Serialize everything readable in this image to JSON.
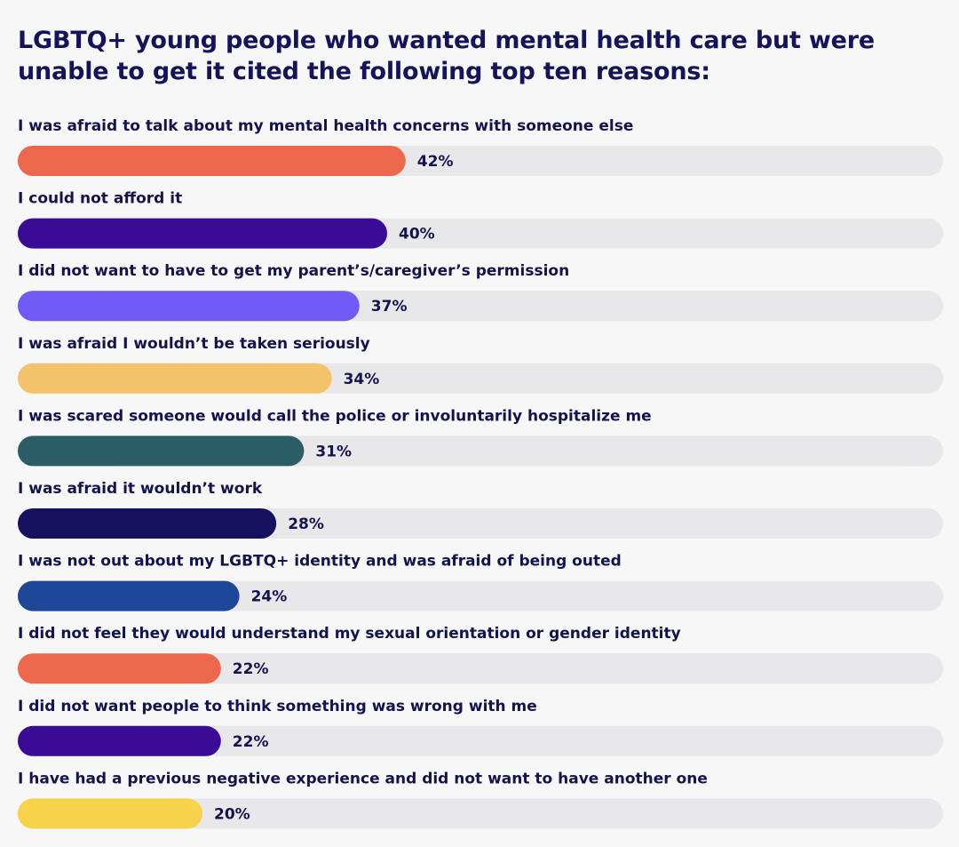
{
  "chart_data": {
    "type": "bar",
    "orientation": "horizontal",
    "title": "LGBTQ+ young people who wanted mental health care but were unable to get it cited the following top ten reasons:",
    "xlim": [
      0,
      100
    ],
    "value_suffix": "%",
    "grid": false,
    "legend": "none",
    "track_color": "#e8e8ea",
    "categories": [
      "I was afraid to talk about my mental health concerns with someone else",
      "I could not afford it",
      "I did not want to have to get my parent’s/caregiver’s permission",
      "I was afraid I wouldn’t be taken seriously",
      "I was scared someone would call the police or involuntarily hospitalize me",
      "I was afraid it wouldn’t work",
      "I was not out about my LGBTQ+ identity and was afraid of being outed",
      "I did not feel they would understand my sexual orientation or gender identity",
      "I did not want people to think something was wrong with me",
      "I have had a previous negative experience and did not want to have another one"
    ],
    "values": [
      42,
      40,
      37,
      34,
      31,
      28,
      24,
      22,
      22,
      20
    ],
    "value_labels": [
      "42%",
      "40%",
      "37%",
      "34%",
      "31%",
      "28%",
      "24%",
      "22%",
      "22%",
      "20%"
    ],
    "colors": [
      "#ec674b",
      "#3a0c95",
      "#7059f5",
      "#f2c36b",
      "#2b5d67",
      "#15115f",
      "#1f4797",
      "#ec674b",
      "#3a0c95",
      "#f6d34b"
    ]
  }
}
